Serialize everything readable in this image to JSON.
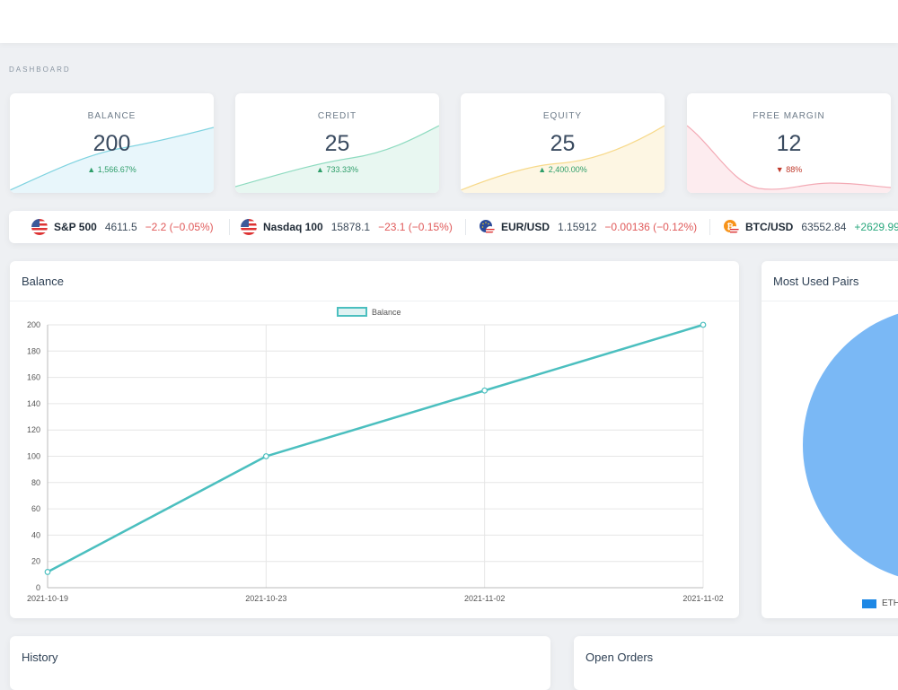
{
  "header": {
    "breadcrumb": "DASHBOARD"
  },
  "stats": [
    {
      "label": "BALANCE",
      "value": "200",
      "change": "1,566.67%",
      "direction": "up",
      "color": "#7fd3e0"
    },
    {
      "label": "CREDIT",
      "value": "25",
      "change": "733.33%",
      "direction": "up",
      "color": "#8edbc0"
    },
    {
      "label": "EQUITY",
      "value": "25",
      "change": "2,400.00%",
      "direction": "up",
      "color": "#f7d98a"
    },
    {
      "label": "FREE MARGIN",
      "value": "12",
      "change": "88%",
      "direction": "down",
      "color": "#f3aab5"
    }
  ],
  "ticker": [
    {
      "symbol": "S&P 500",
      "price": "4611.5",
      "change": "−2.2 (−0.05%)",
      "direction": "neg",
      "icon": "us-flag-icon"
    },
    {
      "symbol": "Nasdaq 100",
      "price": "15878.1",
      "change": "−23.1 (−0.15%)",
      "direction": "neg",
      "icon": "us-flag-icon"
    },
    {
      "symbol": "EUR/USD",
      "price": "1.15912",
      "change": "−0.00136 (−0.12%)",
      "direction": "neg",
      "icon": "eu-us-flag-icon"
    },
    {
      "symbol": "BTC/USD",
      "price": "63552.84",
      "change": "+2629.99",
      "direction": "pos",
      "icon": "bitcoin-icon"
    }
  ],
  "balance_card": {
    "title": "Balance"
  },
  "pairs_card": {
    "title": "Most Used Pairs",
    "legend_label": "ETH",
    "pie_color": "#7ab8f5",
    "legend_color": "#1e88e5"
  },
  "history_card": {
    "title": "History"
  },
  "orders_card": {
    "title": "Open Orders"
  },
  "chart_data": {
    "type": "line",
    "title": "",
    "legend": "Balance",
    "x": [
      "2021-10-19",
      "2021-10-23",
      "2021-11-02",
      "2021-11-02"
    ],
    "series": [
      {
        "name": "Balance",
        "values": [
          12,
          100,
          150,
          200
        ]
      }
    ],
    "ylim": [
      0,
      200
    ],
    "yticks": [
      0,
      20,
      40,
      60,
      80,
      100,
      120,
      140,
      160,
      180,
      200
    ],
    "grid": true,
    "line_color": "#4bbfbf"
  }
}
